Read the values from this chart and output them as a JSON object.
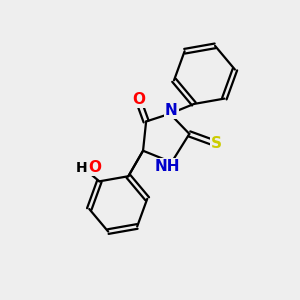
{
  "background_color": "#eeeeee",
  "bond_color": "#000000",
  "atom_colors": {
    "N": "#0000cc",
    "O": "#ff0000",
    "S": "#cccc00",
    "C": "#000000",
    "H": "#000000"
  },
  "figsize": [
    3.0,
    3.0
  ],
  "dpi": 100,
  "bond_lw": 1.6,
  "font_size": 11
}
